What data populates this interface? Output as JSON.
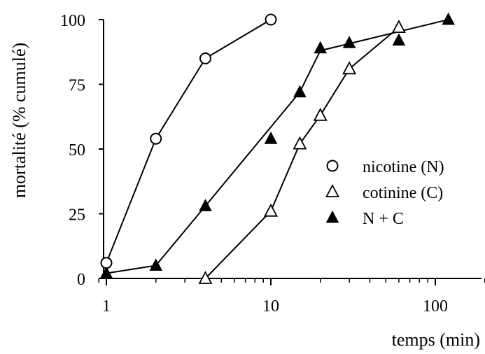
{
  "chart_data": {
    "type": "line",
    "title": "",
    "xlabel": "temps (min)",
    "ylabel": "mortalité (% cumulé)",
    "x_scale": "log",
    "xlim": [
      0.9,
      200
    ],
    "ylim": [
      0,
      100
    ],
    "x_ticks": [
      {
        "value": 1,
        "label": "1"
      },
      {
        "value": 10,
        "label": "10"
      },
      {
        "value": 100,
        "label": "100"
      }
    ],
    "y_ticks": [
      {
        "value": 0,
        "label": "0"
      },
      {
        "value": 25,
        "label": "25"
      },
      {
        "value": 50,
        "label": "50"
      },
      {
        "value": 75,
        "label": "75"
      },
      {
        "value": 100,
        "label": "100"
      }
    ],
    "grid": false,
    "legend_position": "right",
    "series": [
      {
        "name": "nicotine (N)",
        "marker": "circle-open",
        "points": [
          {
            "x": 1,
            "y": 6
          },
          {
            "x": 2,
            "y": 54
          },
          {
            "x": 4,
            "y": 85
          },
          {
            "x": 10,
            "y": 100
          }
        ]
      },
      {
        "name": "cotinine (C)",
        "marker": "triangle-open",
        "points": [
          {
            "x": 4,
            "y": 0
          },
          {
            "x": 10,
            "y": 26
          },
          {
            "x": 15,
            "y": 52
          },
          {
            "x": 20,
            "y": 63
          },
          {
            "x": 30,
            "y": 81
          },
          {
            "x": 60,
            "y": 97
          }
        ]
      },
      {
        "name": "N + C",
        "marker": "triangle-filled",
        "points": [
          {
            "x": 1,
            "y": 2
          },
          {
            "x": 2,
            "y": 5
          },
          {
            "x": 4,
            "y": 28
          },
          {
            "x": 10,
            "y": 54
          },
          {
            "x": 15,
            "y": 72
          },
          {
            "x": 20,
            "y": 89
          },
          {
            "x": 30,
            "y": 91
          },
          {
            "x": 60,
            "y": 92
          },
          {
            "x": 120,
            "y": 100
          }
        ]
      }
    ],
    "trend_lines": [
      {
        "series": "N + C",
        "points": [
          {
            "x": 1,
            "y": 2
          },
          {
            "x": 2,
            "y": 5
          },
          {
            "x": 4,
            "y": 28
          },
          {
            "x": 15,
            "y": 72
          },
          {
            "x": 20,
            "y": 88
          }
        ]
      },
      {
        "series": "N + C",
        "points": [
          {
            "x": 20,
            "y": 88
          },
          {
            "x": 120,
            "y": 100
          }
        ]
      }
    ]
  }
}
